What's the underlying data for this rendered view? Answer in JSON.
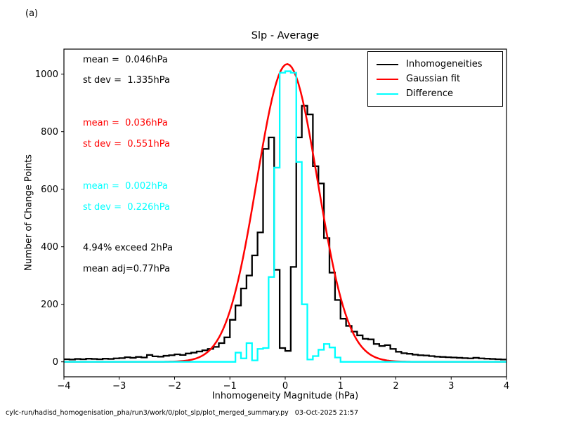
{
  "panel_label": "(a)",
  "title": "Slp - Average",
  "footer": "cylc-run/hadisd_homogenisation_pha/run3/work/0/plot_slp/plot_merged_summary.py   03-Oct-2025 21:57",
  "axes": {
    "xlabel": "Inhomogeneity Magnitude (hPa)",
    "ylabel": "Number of Change Points",
    "xticks": [
      -4,
      -3,
      -2,
      -1,
      0,
      1,
      2,
      3,
      4
    ],
    "xtick_labels": [
      "−4",
      "−3",
      "−2",
      "−1",
      "0",
      "1",
      "2",
      "3",
      "4"
    ],
    "yticks": [
      0,
      200,
      400,
      600,
      800,
      1000
    ],
    "ytick_labels": [
      "0",
      "200",
      "400",
      "600",
      "800",
      "1000"
    ],
    "xlim": [
      -4,
      4
    ],
    "ylim": [
      -52,
      1087
    ]
  },
  "annotations": [
    {
      "text": "mean =  0.046hPa",
      "color": "#000000"
    },
    {
      "text": "st dev =  1.335hPa",
      "color": "#000000"
    },
    {
      "text": "mean =  0.036hPa",
      "color": "#ff0000"
    },
    {
      "text": "st dev =  0.551hPa",
      "color": "#ff0000"
    },
    {
      "text": "mean =  0.002hPa",
      "color": "#00ffff"
    },
    {
      "text": "st dev =  0.226hPa",
      "color": "#00ffff"
    },
    {
      "text": "4.94% exceed 2hPa",
      "color": "#000000"
    },
    {
      "text": "mean adj=0.77hPa",
      "color": "#000000"
    }
  ],
  "legend": {
    "items": [
      {
        "label": "Inhomogeneities",
        "color": "#000000"
      },
      {
        "label": "Gaussian fit",
        "color": "#ff0000"
      },
      {
        "label": "Difference",
        "color": "#00ffff"
      }
    ]
  },
  "chart_data": {
    "type": "line",
    "title": "Slp - Average",
    "xlabel": "Inhomogeneity Magnitude (hPa)",
    "ylabel": "Number of Change Points",
    "xlim": [
      -4,
      4
    ],
    "ylim": [
      -52,
      1087
    ],
    "grid": false,
    "legend_position": "upper right",
    "bin_start": -4.0,
    "bin_width": 0.1,
    "series": [
      {
        "name": "Inhomogeneities",
        "style": "step-histogram",
        "color": "#000000",
        "values": [
          9,
          8,
          10,
          9,
          11,
          10,
          9,
          11,
          10,
          12,
          13,
          16,
          14,
          17,
          15,
          24,
          19,
          18,
          21,
          23,
          26,
          24,
          29,
          32,
          36,
          40,
          45,
          52,
          65,
          85,
          146,
          196,
          255,
          300,
          370,
          450,
          740,
          780,
          320,
          48,
          38,
          330,
          780,
          890,
          860,
          680,
          620,
          430,
          310,
          215,
          150,
          125,
          105,
          92,
          80,
          78,
          62,
          55,
          58,
          45,
          35,
          30,
          28,
          25,
          23,
          22,
          20,
          18,
          17,
          16,
          15,
          14,
          13,
          12,
          14,
          12,
          11,
          10,
          9,
          8
        ],
        "stats": {
          "mean_hPa": 0.046,
          "st_dev_hPa": 1.335
        }
      },
      {
        "name": "Gaussian fit",
        "style": "gaussian-curve",
        "color": "#ff0000",
        "amplitude": 1035,
        "mean": 0.036,
        "sigma": 0.551,
        "stats": {
          "mean_hPa": 0.036,
          "st_dev_hPa": 0.551
        }
      },
      {
        "name": "Difference",
        "style": "step-histogram",
        "color": "#00ffff",
        "values": [
          0,
          0,
          0,
          0,
          0,
          0,
          0,
          0,
          0,
          0,
          0,
          0,
          0,
          0,
          0,
          0,
          0,
          0,
          0,
          0,
          0,
          0,
          0,
          0,
          0,
          0,
          0,
          0,
          0,
          0,
          0,
          32,
          12,
          65,
          5,
          45,
          48,
          295,
          675,
          1005,
          1010,
          1005,
          695,
          200,
          8,
          20,
          42,
          62,
          50,
          15,
          0,
          0,
          0,
          0,
          0,
          0,
          0,
          0,
          0,
          0,
          0,
          0,
          0,
          0,
          0,
          0,
          0,
          0,
          0,
          0,
          0,
          0,
          0,
          0,
          0,
          0,
          0,
          0,
          0,
          0
        ],
        "stats": {
          "mean_hPa": 0.002,
          "st_dev_hPa": 0.226
        }
      }
    ],
    "extra_stats": {
      "exceed_text": "4.94% exceed 2hPa",
      "mean_adjustment_text": "mean adj=0.77hPa"
    }
  }
}
